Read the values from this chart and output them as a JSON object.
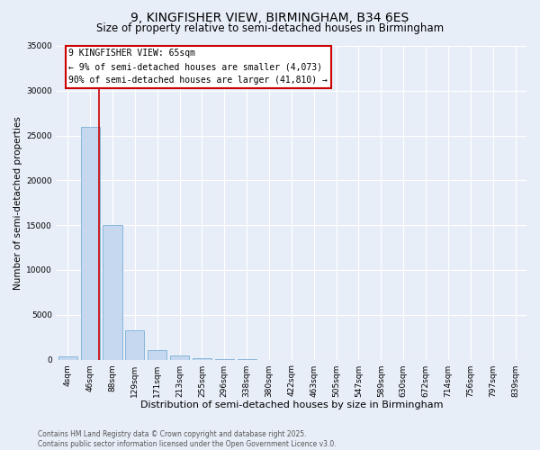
{
  "title1": "9, KINGFISHER VIEW, BIRMINGHAM, B34 6ES",
  "title2": "Size of property relative to semi-detached houses in Birmingham",
  "xlabel": "Distribution of semi-detached houses by size in Birmingham",
  "ylabel": "Number of semi-detached properties",
  "categories": [
    "4sqm",
    "46sqm",
    "88sqm",
    "129sqm",
    "171sqm",
    "213sqm",
    "255sqm",
    "296sqm",
    "338sqm",
    "380sqm",
    "422sqm",
    "463sqm",
    "505sqm",
    "547sqm",
    "589sqm",
    "630sqm",
    "672sqm",
    "714sqm",
    "756sqm",
    "797sqm",
    "839sqm"
  ],
  "values": [
    400,
    26000,
    15000,
    3300,
    1100,
    500,
    200,
    50,
    10,
    0,
    0,
    0,
    0,
    0,
    0,
    0,
    0,
    0,
    0,
    0,
    0
  ],
  "bar_color": "#c5d8f0",
  "bar_edge_color": "#7bafd4",
  "vline_x": 1.4,
  "vline_color": "#cc0000",
  "annotation_text": "9 KINGFISHER VIEW: 65sqm\n← 9% of semi-detached houses are smaller (4,073)\n90% of semi-detached houses are larger (41,810) →",
  "annotation_box_color": "#cc0000",
  "ylim": [
    0,
    35000
  ],
  "yticks": [
    0,
    5000,
    10000,
    15000,
    20000,
    25000,
    30000,
    35000
  ],
  "background_color": "#e8eef8",
  "grid_color": "#ffffff",
  "footnote": "Contains HM Land Registry data © Crown copyright and database right 2025.\nContains public sector information licensed under the Open Government Licence v3.0.",
  "title1_fontsize": 10,
  "title2_fontsize": 8.5,
  "xlabel_fontsize": 8,
  "ylabel_fontsize": 7.5,
  "tick_fontsize": 6.5,
  "annotation_fontsize": 7,
  "footnote_fontsize": 5.5
}
